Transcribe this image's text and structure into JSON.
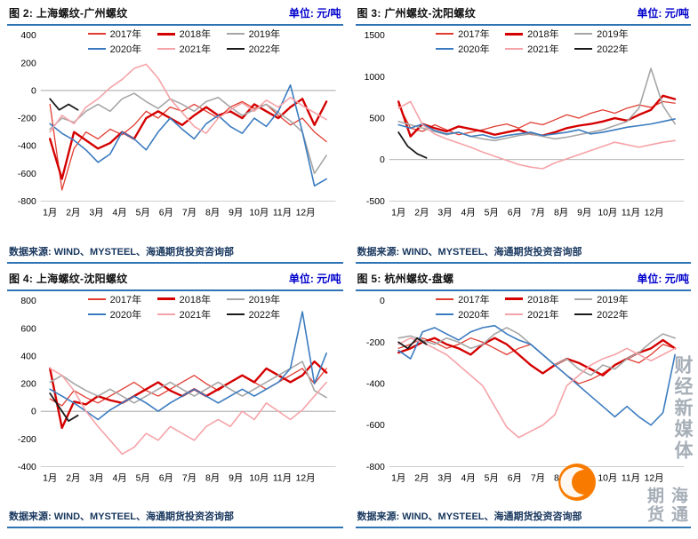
{
  "unit_label": "单位: 元/吨",
  "source_label": "数据来源: WIND、MYSTEEL、海通期货投资咨询部",
  "x_ticklabels": [
    "1月",
    "2月",
    "3月",
    "4月",
    "5月",
    "6月",
    "7月",
    "8月",
    "9月",
    "10月",
    "11月",
    "12月"
  ],
  "xlim": [
    0.6,
    13.3
  ],
  "colors": {
    "accent_rule": "#2e74b5",
    "unit_text": "#0000cc",
    "source_text": "#17365d",
    "y2017": "#e03c31",
    "y2018": "#d40000",
    "y2019": "#a6a6a6",
    "y2020": "#3a7bbf",
    "y2021": "#f5a3a8",
    "y2022": "#1a1a1a"
  },
  "watermark": {
    "texts": [
      "财经新媒体",
      "海通期货"
    ],
    "logo": "zhongjin-online-orange-circle",
    "logo_color": "#f87b00",
    "text_color": "#97a1ab"
  },
  "chart_data": [
    {
      "type": "line",
      "title": "图 2: 上海螺纹-广州螺纹",
      "ylabel": "元/吨",
      "ylim": [
        -800,
        400
      ],
      "yticks": [
        400,
        200,
        0,
        -200,
        -400,
        -600,
        -800
      ],
      "series": [
        {
          "name": "2017年",
          "color": "#e03c31",
          "width": 1.3,
          "x_start": 1,
          "x_end": 12.9,
          "y": [
            -100,
            -720,
            -420,
            -300,
            -350,
            -280,
            -320,
            -250,
            -150,
            -200,
            -120,
            -150,
            -100,
            -150,
            -200,
            -120,
            -80,
            -130,
            -100,
            -180,
            -250,
            -200,
            -300,
            -370
          ]
        },
        {
          "name": "2018年",
          "color": "#d40000",
          "width": 2.4,
          "x_start": 1,
          "x_end": 12.9,
          "y": [
            -350,
            -640,
            -300,
            -360,
            -420,
            -380,
            -300,
            -350,
            -200,
            -150,
            -200,
            -250,
            -180,
            -120,
            -180,
            -150,
            -200,
            -100,
            -150,
            -200,
            -120,
            -60,
            -250,
            -80
          ]
        },
        {
          "name": "2019年",
          "color": "#a6a6a6",
          "width": 1.6,
          "x_start": 1,
          "x_end": 12.9,
          "y": [
            -280,
            -200,
            -230,
            -150,
            -100,
            -150,
            -60,
            -20,
            -80,
            -130,
            -60,
            -100,
            -150,
            -80,
            -50,
            -120,
            -180,
            -140,
            -100,
            -160,
            -220,
            -300,
            -600,
            -470
          ]
        },
        {
          "name": "2020年",
          "color": "#3a7bbf",
          "width": 1.6,
          "x_start": 1,
          "x_end": 12.9,
          "y": [
            -240,
            -310,
            -360,
            -430,
            -520,
            -460,
            -300,
            -350,
            -430,
            -300,
            -200,
            -280,
            -350,
            -240,
            -180,
            -260,
            -310,
            -200,
            -260,
            -150,
            40,
            -300,
            -690,
            -640
          ]
        },
        {
          "name": "2021年",
          "color": "#f5a3a8",
          "width": 1.6,
          "x_start": 1,
          "x_end": 12.9,
          "y": [
            -300,
            -180,
            -240,
            -120,
            -60,
            20,
            80,
            160,
            190,
            90,
            -60,
            -160,
            -260,
            -310,
            -200,
            -140,
            -90,
            -150,
            -70,
            -120,
            -50,
            -110,
            -160,
            -210
          ]
        },
        {
          "name": "2022年",
          "color": "#1a1a1a",
          "width": 1.8,
          "x_start": 1,
          "x_end": 2.2,
          "y": [
            -60,
            -140,
            -100,
            -140
          ]
        }
      ]
    },
    {
      "type": "line",
      "title": "图 3: 广州螺纹-沈阳螺纹",
      "ylabel": "元/吨",
      "ylim": [
        -500,
        1500
      ],
      "yticks": [
        1500,
        1000,
        500,
        0,
        -500
      ],
      "series": [
        {
          "name": "2017年",
          "color": "#e03c31",
          "width": 1.3,
          "x_start": 1,
          "x_end": 12.9,
          "y": [
            660,
            380,
            340,
            420,
            360,
            300,
            330,
            360,
            400,
            430,
            380,
            450,
            420,
            480,
            540,
            500,
            560,
            600,
            560,
            620,
            660,
            630,
            700,
            680
          ]
        },
        {
          "name": "2018年",
          "color": "#d40000",
          "width": 2.4,
          "x_start": 1,
          "x_end": 12.9,
          "y": [
            700,
            280,
            430,
            380,
            340,
            400,
            370,
            340,
            300,
            330,
            360,
            310,
            290,
            330,
            380,
            410,
            430,
            460,
            500,
            470,
            540,
            600,
            770,
            730
          ]
        },
        {
          "name": "2019年",
          "color": "#a6a6a6",
          "width": 1.6,
          "x_start": 1,
          "x_end": 12.9,
          "y": [
            460,
            420,
            380,
            340,
            300,
            330,
            280,
            250,
            230,
            260,
            290,
            310,
            280,
            250,
            270,
            300,
            330,
            360,
            410,
            460,
            620,
            1100,
            650,
            430
          ]
        },
        {
          "name": "2020年",
          "color": "#3a7bbf",
          "width": 1.6,
          "x_start": 1,
          "x_end": 12.9,
          "y": [
            420,
            380,
            430,
            350,
            310,
            330,
            280,
            300,
            260,
            290,
            310,
            330,
            290,
            310,
            330,
            360,
            310,
            330,
            360,
            390,
            410,
            430,
            460,
            490
          ]
        },
        {
          "name": "2021年",
          "color": "#f5a3a8",
          "width": 1.6,
          "x_start": 1,
          "x_end": 12.9,
          "y": [
            620,
            700,
            420,
            310,
            250,
            200,
            150,
            90,
            40,
            -10,
            -60,
            -90,
            -110,
            -40,
            10,
            60,
            110,
            160,
            210,
            180,
            150,
            180,
            210,
            230
          ]
        },
        {
          "name": "2022年",
          "color": "#1a1a1a",
          "width": 1.8,
          "x_start": 1,
          "x_end": 2.2,
          "y": [
            330,
            160,
            70,
            20
          ]
        }
      ]
    },
    {
      "type": "line",
      "title": "图 4: 上海螺纹-沈阳螺纹",
      "ylabel": "元/吨",
      "ylim": [
        -400,
        800
      ],
      "yticks": [
        800,
        600,
        400,
        200,
        0,
        -200,
        -400
      ],
      "series": [
        {
          "name": "2017年",
          "color": "#e03c31",
          "width": 1.3,
          "x_start": 1,
          "x_end": 12.9,
          "y": [
            90,
            40,
            150,
            100,
            60,
            110,
            160,
            210,
            150,
            110,
            160,
            210,
            260,
            200,
            150,
            210,
            260,
            210,
            160,
            210,
            260,
            310,
            200,
            310
          ]
        },
        {
          "name": "2018年",
          "color": "#d40000",
          "width": 2.4,
          "x_start": 1,
          "x_end": 12.9,
          "y": [
            310,
            -120,
            70,
            50,
            110,
            80,
            60,
            110,
            160,
            210,
            150,
            110,
            160,
            110,
            160,
            210,
            260,
            210,
            310,
            260,
            210,
            260,
            360,
            280
          ]
        },
        {
          "name": "2019年",
          "color": "#a6a6a6",
          "width": 1.6,
          "x_start": 1,
          "x_end": 12.9,
          "y": [
            210,
            260,
            200,
            150,
            110,
            160,
            110,
            60,
            110,
            160,
            210,
            160,
            110,
            160,
            210,
            160,
            110,
            160,
            210,
            260,
            310,
            360,
            150,
            100
          ]
        },
        {
          "name": "2020年",
          "color": "#3a7bbf",
          "width": 1.6,
          "x_start": 1,
          "x_end": 12.9,
          "y": [
            160,
            110,
            60,
            0,
            -60,
            10,
            60,
            110,
            60,
            0,
            60,
            110,
            160,
            110,
            60,
            110,
            160,
            110,
            160,
            210,
            310,
            720,
            200,
            420
          ]
        },
        {
          "name": "2021年",
          "color": "#f5a3a8",
          "width": 1.6,
          "x_start": 1,
          "x_end": 12.9,
          "y": [
            310,
            260,
            150,
            0,
            -110,
            -210,
            -310,
            -260,
            -160,
            -210,
            -110,
            -160,
            -210,
            -110,
            -60,
            -110,
            0,
            -60,
            60,
            0,
            -60,
            10,
            110,
            210
          ]
        },
        {
          "name": "2022年",
          "color": "#1a1a1a",
          "width": 1.8,
          "x_start": 1,
          "x_end": 2.2,
          "y": [
            130,
            30,
            -70,
            -30
          ]
        }
      ]
    },
    {
      "type": "line",
      "title": "图 5: 杭州螺纹-盘螺",
      "ylabel": "元/吨",
      "ylim": [
        -800,
        0
      ],
      "yticks": [
        0,
        -200,
        -400,
        -600,
        -800
      ],
      "series": [
        {
          "name": "2017年",
          "color": "#e03c31",
          "width": 1.3,
          "x_start": 1,
          "x_end": 12.9,
          "y": [
            -230,
            -210,
            -180,
            -200,
            -230,
            -210,
            -180,
            -200,
            -230,
            -260,
            -230,
            -210,
            -260,
            -310,
            -360,
            -400,
            -380,
            -350,
            -310,
            -280,
            -300,
            -260,
            -210,
            -230
          ]
        },
        {
          "name": "2018年",
          "color": "#d40000",
          "width": 2.4,
          "x_start": 1,
          "x_end": 12.9,
          "y": [
            -250,
            -230,
            -200,
            -180,
            -210,
            -230,
            -260,
            -210,
            -180,
            -210,
            -260,
            -310,
            -350,
            -310,
            -280,
            -300,
            -330,
            -360,
            -310,
            -280,
            -250,
            -230,
            -190,
            -230
          ]
        },
        {
          "name": "2019年",
          "color": "#a6a6a6",
          "width": 1.6,
          "x_start": 1,
          "x_end": 12.9,
          "y": [
            -180,
            -170,
            -190,
            -210,
            -180,
            -200,
            -230,
            -210,
            -160,
            -130,
            -160,
            -210,
            -260,
            -310,
            -280,
            -330,
            -360,
            -310,
            -330,
            -280,
            -250,
            -200,
            -160,
            -180
          ]
        },
        {
          "name": "2020年",
          "color": "#3a7bbf",
          "width": 1.6,
          "x_start": 1,
          "x_end": 12.9,
          "y": [
            -240,
            -280,
            -150,
            -130,
            -160,
            -190,
            -150,
            -130,
            -120,
            -160,
            -190,
            -210,
            -260,
            -310,
            -360,
            -410,
            -460,
            -510,
            -560,
            -510,
            -560,
            -600,
            -540,
            -260
          ]
        },
        {
          "name": "2021年",
          "color": "#f5a3a8",
          "width": 1.6,
          "x_start": 1,
          "x_end": 12.9,
          "y": [
            -210,
            -180,
            -200,
            -230,
            -260,
            -310,
            -360,
            -410,
            -510,
            -610,
            -660,
            -630,
            -600,
            -550,
            -410,
            -360,
            -310,
            -280,
            -260,
            -230,
            -260,
            -290,
            -260,
            -230
          ]
        },
        {
          "name": "2022年",
          "color": "#1a1a1a",
          "width": 1.8,
          "x_start": 1,
          "x_end": 2.2,
          "y": [
            -200,
            -230,
            -180,
            -210
          ]
        }
      ]
    }
  ]
}
